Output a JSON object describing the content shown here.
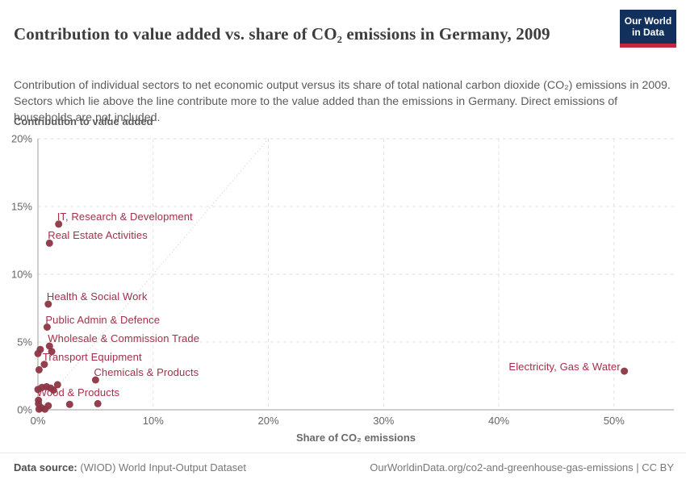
{
  "header": {
    "title": "Contribution to value added vs. share of CO₂ emissions in Germany, 2009",
    "subtitle": "Contribution of individual sectors to net economic output versus its share of total national carbon dioxide (CO₂) emissions in 2009. Sectors which lie above the line contribute more to the value added than the emissions in Germany. Direct emissions of households are not included.",
    "logo": {
      "line1": "Our World",
      "line2": "in Data",
      "bg_color": "#12305c",
      "accent_color": "#c5273d"
    }
  },
  "footer": {
    "source_label": "Data source:",
    "source_value": " (WIOD) World Input-Output Dataset",
    "attribution": "OurWorldinData.org/co2-and-greenhouse-gas-emissions | CC BY"
  },
  "chart_data": {
    "type": "scatter",
    "title": "Contribution to value added vs. share of CO₂ emissions in Germany, 2009",
    "xlabel": "Share of CO₂ emissions",
    "ylabel": "Contribution to value added",
    "xlim": [
      0,
      55.2
    ],
    "ylim": [
      0,
      20
    ],
    "x_ticks": [
      0,
      10,
      20,
      30,
      40,
      50
    ],
    "y_ticks": [
      0,
      5,
      10,
      15,
      20
    ],
    "tick_suffix": "%",
    "grid": true,
    "legend": "none",
    "diagonal_line": {
      "from_xy": [
        0,
        0
      ],
      "to_xy": [
        20,
        20
      ],
      "meaning": "parity line: value added share = emissions share"
    },
    "point_color": "#8c3644",
    "label_color": "#a33049",
    "axis_color": "#9e9e9e",
    "grid_color": "#e2e2e2",
    "points": [
      {
        "label": "IT, Research & Development",
        "x": 1.8,
        "y": 13.7,
        "label_side": "right"
      },
      {
        "label": "Real Estate Activities",
        "x": 1.0,
        "y": 12.3,
        "label_side": "right"
      },
      {
        "label": "Health & Social Work",
        "x": 0.9,
        "y": 7.8,
        "label_side": "right"
      },
      {
        "label": "Public Admin & Defence",
        "x": 0.8,
        "y": 6.1,
        "label_side": "right"
      },
      {
        "label": "Wholesale & Commission Trade",
        "x": 1.0,
        "y": 4.7,
        "label_side": "right"
      },
      {
        "label": "Transport Equipment",
        "x": 0.55,
        "y": 3.35,
        "label_side": "right"
      },
      {
        "label": "Chemicals & Products",
        "x": 5.0,
        "y": 2.2,
        "label_side": "right"
      },
      {
        "label": "Wood & Products",
        "x": 0.05,
        "y": 0.7,
        "label_side": "right"
      },
      {
        "label": "Electricity, Gas & Water",
        "x": 50.9,
        "y": 2.85,
        "label_side": "left"
      },
      {
        "x": 0.2,
        "y": 4.45
      },
      {
        "x": 0.0,
        "y": 4.15
      },
      {
        "x": 1.2,
        "y": 4.3
      },
      {
        "x": 0.1,
        "y": 2.95
      },
      {
        "x": 0.35,
        "y": 1.65
      },
      {
        "x": 0.75,
        "y": 1.7
      },
      {
        "x": 1.1,
        "y": 1.6
      },
      {
        "x": 1.35,
        "y": 1.45
      },
      {
        "x": 1.7,
        "y": 1.85
      },
      {
        "x": 0.0,
        "y": 1.5
      },
      {
        "x": 0.05,
        "y": 0.45
      },
      {
        "x": 0.3,
        "y": 0.15
      },
      {
        "x": 0.6,
        "y": 0.05
      },
      {
        "x": 0.9,
        "y": 0.3
      },
      {
        "x": 2.75,
        "y": 0.4
      },
      {
        "x": 5.2,
        "y": 0.45
      },
      {
        "x": 0.1,
        "y": 0.05
      }
    ]
  }
}
